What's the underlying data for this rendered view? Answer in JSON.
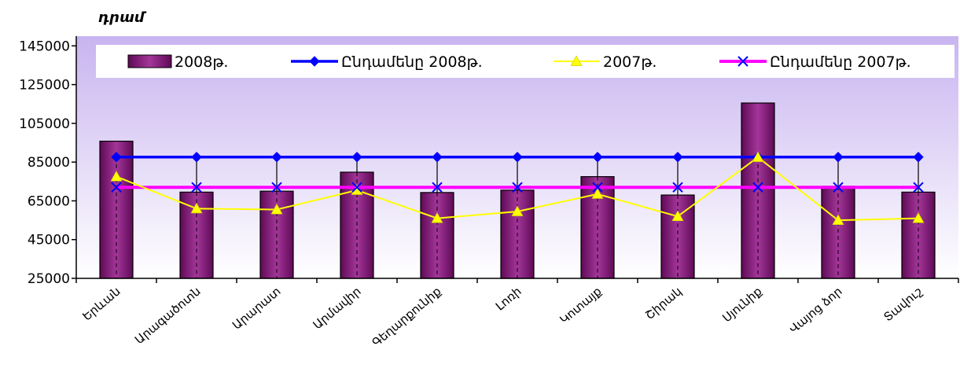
{
  "chart_data": {
    "type": "bar",
    "unit_label": "դրամ",
    "categories": [
      "Երևան",
      "Արագածոտն",
      "Արարատ",
      "Արմավիր",
      "Գեղարքունիք",
      "Լոռի",
      "Կոտայք",
      "Շիրակ",
      "Սյունիք",
      "Վայոց ձոր",
      "Տավուշ"
    ],
    "ylim": [
      25000,
      150000
    ],
    "yticks": [
      25000,
      45000,
      65000,
      85000,
      105000,
      125000,
      145000
    ],
    "ytick_labels": [
      "25000",
      "45000",
      "65000",
      "85000",
      "105000",
      "125000",
      "145000"
    ],
    "series": [
      {
        "name": "2008թ.",
        "type": "bar",
        "color": "#8b1a7e",
        "values": [
          95800,
          69500,
          70000,
          79800,
          69300,
          70500,
          77500,
          68000,
          115500,
          72500,
          69500
        ]
      },
      {
        "name": "Ընդամենը 2008թ.",
        "type": "line",
        "marker": "diamond",
        "color": "#0000ff",
        "values": [
          87600,
          87600,
          87600,
          87600,
          87600,
          87600,
          87600,
          87600,
          87600,
          87600,
          87600
        ]
      },
      {
        "name": "2007թ.",
        "type": "line",
        "marker": "triangle",
        "color": "#ffff00",
        "values": [
          77500,
          61000,
          60500,
          70500,
          56000,
          59500,
          68500,
          57000,
          87500,
          55000,
          56000
        ]
      },
      {
        "name": "Ընդամենը 2007թ.",
        "type": "line",
        "marker": "x",
        "color": "#ff00ff",
        "marker_color": "#0000ff",
        "values": [
          72000,
          72000,
          72000,
          72000,
          72000,
          72000,
          72000,
          72000,
          72000,
          72000,
          72000
        ]
      }
    ],
    "legend_position": "top",
    "plot_background": "gradient-lavender"
  }
}
